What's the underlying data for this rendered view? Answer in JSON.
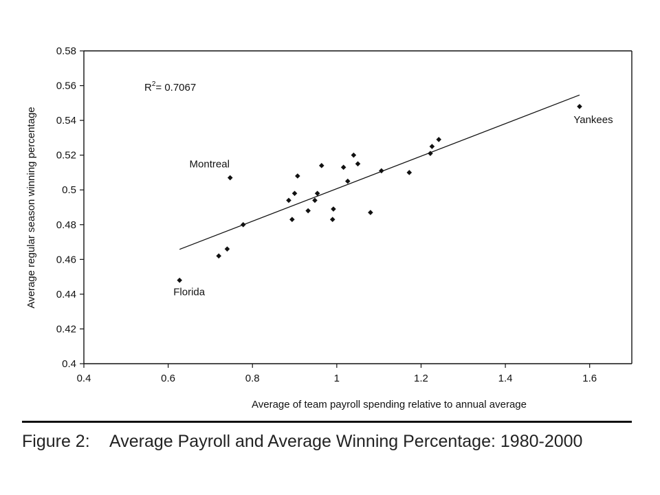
{
  "chart_data": {
    "type": "scatter",
    "title": "",
    "xlabel": "Average of team payroll spending relative to annual average",
    "ylabel": "Average regular season winning percentage",
    "xlim": [
      0.4,
      1.7
    ],
    "ylim": [
      0.4,
      0.58
    ],
    "x_ticks": [
      0.4,
      0.6,
      0.8,
      1,
      1.2,
      1.4,
      1.6
    ],
    "x_tick_labels": [
      "0.4",
      "0.6",
      "0.8",
      "1",
      "1.2",
      "1.4",
      "1.6"
    ],
    "y_ticks": [
      0.4,
      0.42,
      0.44,
      0.46,
      0.48,
      0.5,
      0.52,
      0.54,
      0.56,
      0.58
    ],
    "y_tick_labels": [
      "0.4",
      "0.42",
      "0.44",
      "0.46",
      "0.48",
      "0.5",
      "0.52",
      "0.54",
      "0.56",
      "0.58"
    ],
    "grid": false,
    "points": [
      {
        "x": 0.627,
        "y": 0.448
      },
      {
        "x": 0.72,
        "y": 0.462
      },
      {
        "x": 0.74,
        "y": 0.466
      },
      {
        "x": 0.747,
        "y": 0.507
      },
      {
        "x": 0.778,
        "y": 0.48
      },
      {
        "x": 0.886,
        "y": 0.494
      },
      {
        "x": 0.894,
        "y": 0.483
      },
      {
        "x": 0.9,
        "y": 0.498
      },
      {
        "x": 0.907,
        "y": 0.508
      },
      {
        "x": 0.932,
        "y": 0.488
      },
      {
        "x": 0.948,
        "y": 0.494
      },
      {
        "x": 0.954,
        "y": 0.498
      },
      {
        "x": 0.964,
        "y": 0.514
      },
      {
        "x": 0.99,
        "y": 0.483
      },
      {
        "x": 0.992,
        "y": 0.489
      },
      {
        "x": 1.016,
        "y": 0.513
      },
      {
        "x": 1.026,
        "y": 0.505
      },
      {
        "x": 1.04,
        "y": 0.52
      },
      {
        "x": 1.05,
        "y": 0.515
      },
      {
        "x": 1.08,
        "y": 0.487
      },
      {
        "x": 1.106,
        "y": 0.511
      },
      {
        "x": 1.172,
        "y": 0.51
      },
      {
        "x": 1.222,
        "y": 0.521
      },
      {
        "x": 1.226,
        "y": 0.525
      },
      {
        "x": 1.242,
        "y": 0.529
      },
      {
        "x": 1.576,
        "y": 0.548
      }
    ],
    "trendline": {
      "x1": 0.627,
      "y1": 0.4658,
      "x2": 1.576,
      "y2": 0.5546
    },
    "r_squared_label": "= 0.7067",
    "r_label_base": "R",
    "r_label_sup": "2",
    "annotations": [
      {
        "text": "Montreal",
        "x": 0.747,
        "y": 0.507
      },
      {
        "text": "Florida",
        "x": 0.627,
        "y": 0.448
      },
      {
        "text": "Yankees",
        "x": 1.576,
        "y": 0.548
      }
    ],
    "marker_color": "#111111",
    "line_color": "#111111"
  },
  "caption": {
    "figure_label": "Figure 2:",
    "text": "Average Payroll and Average Winning Percentage: 1980-2000"
  }
}
